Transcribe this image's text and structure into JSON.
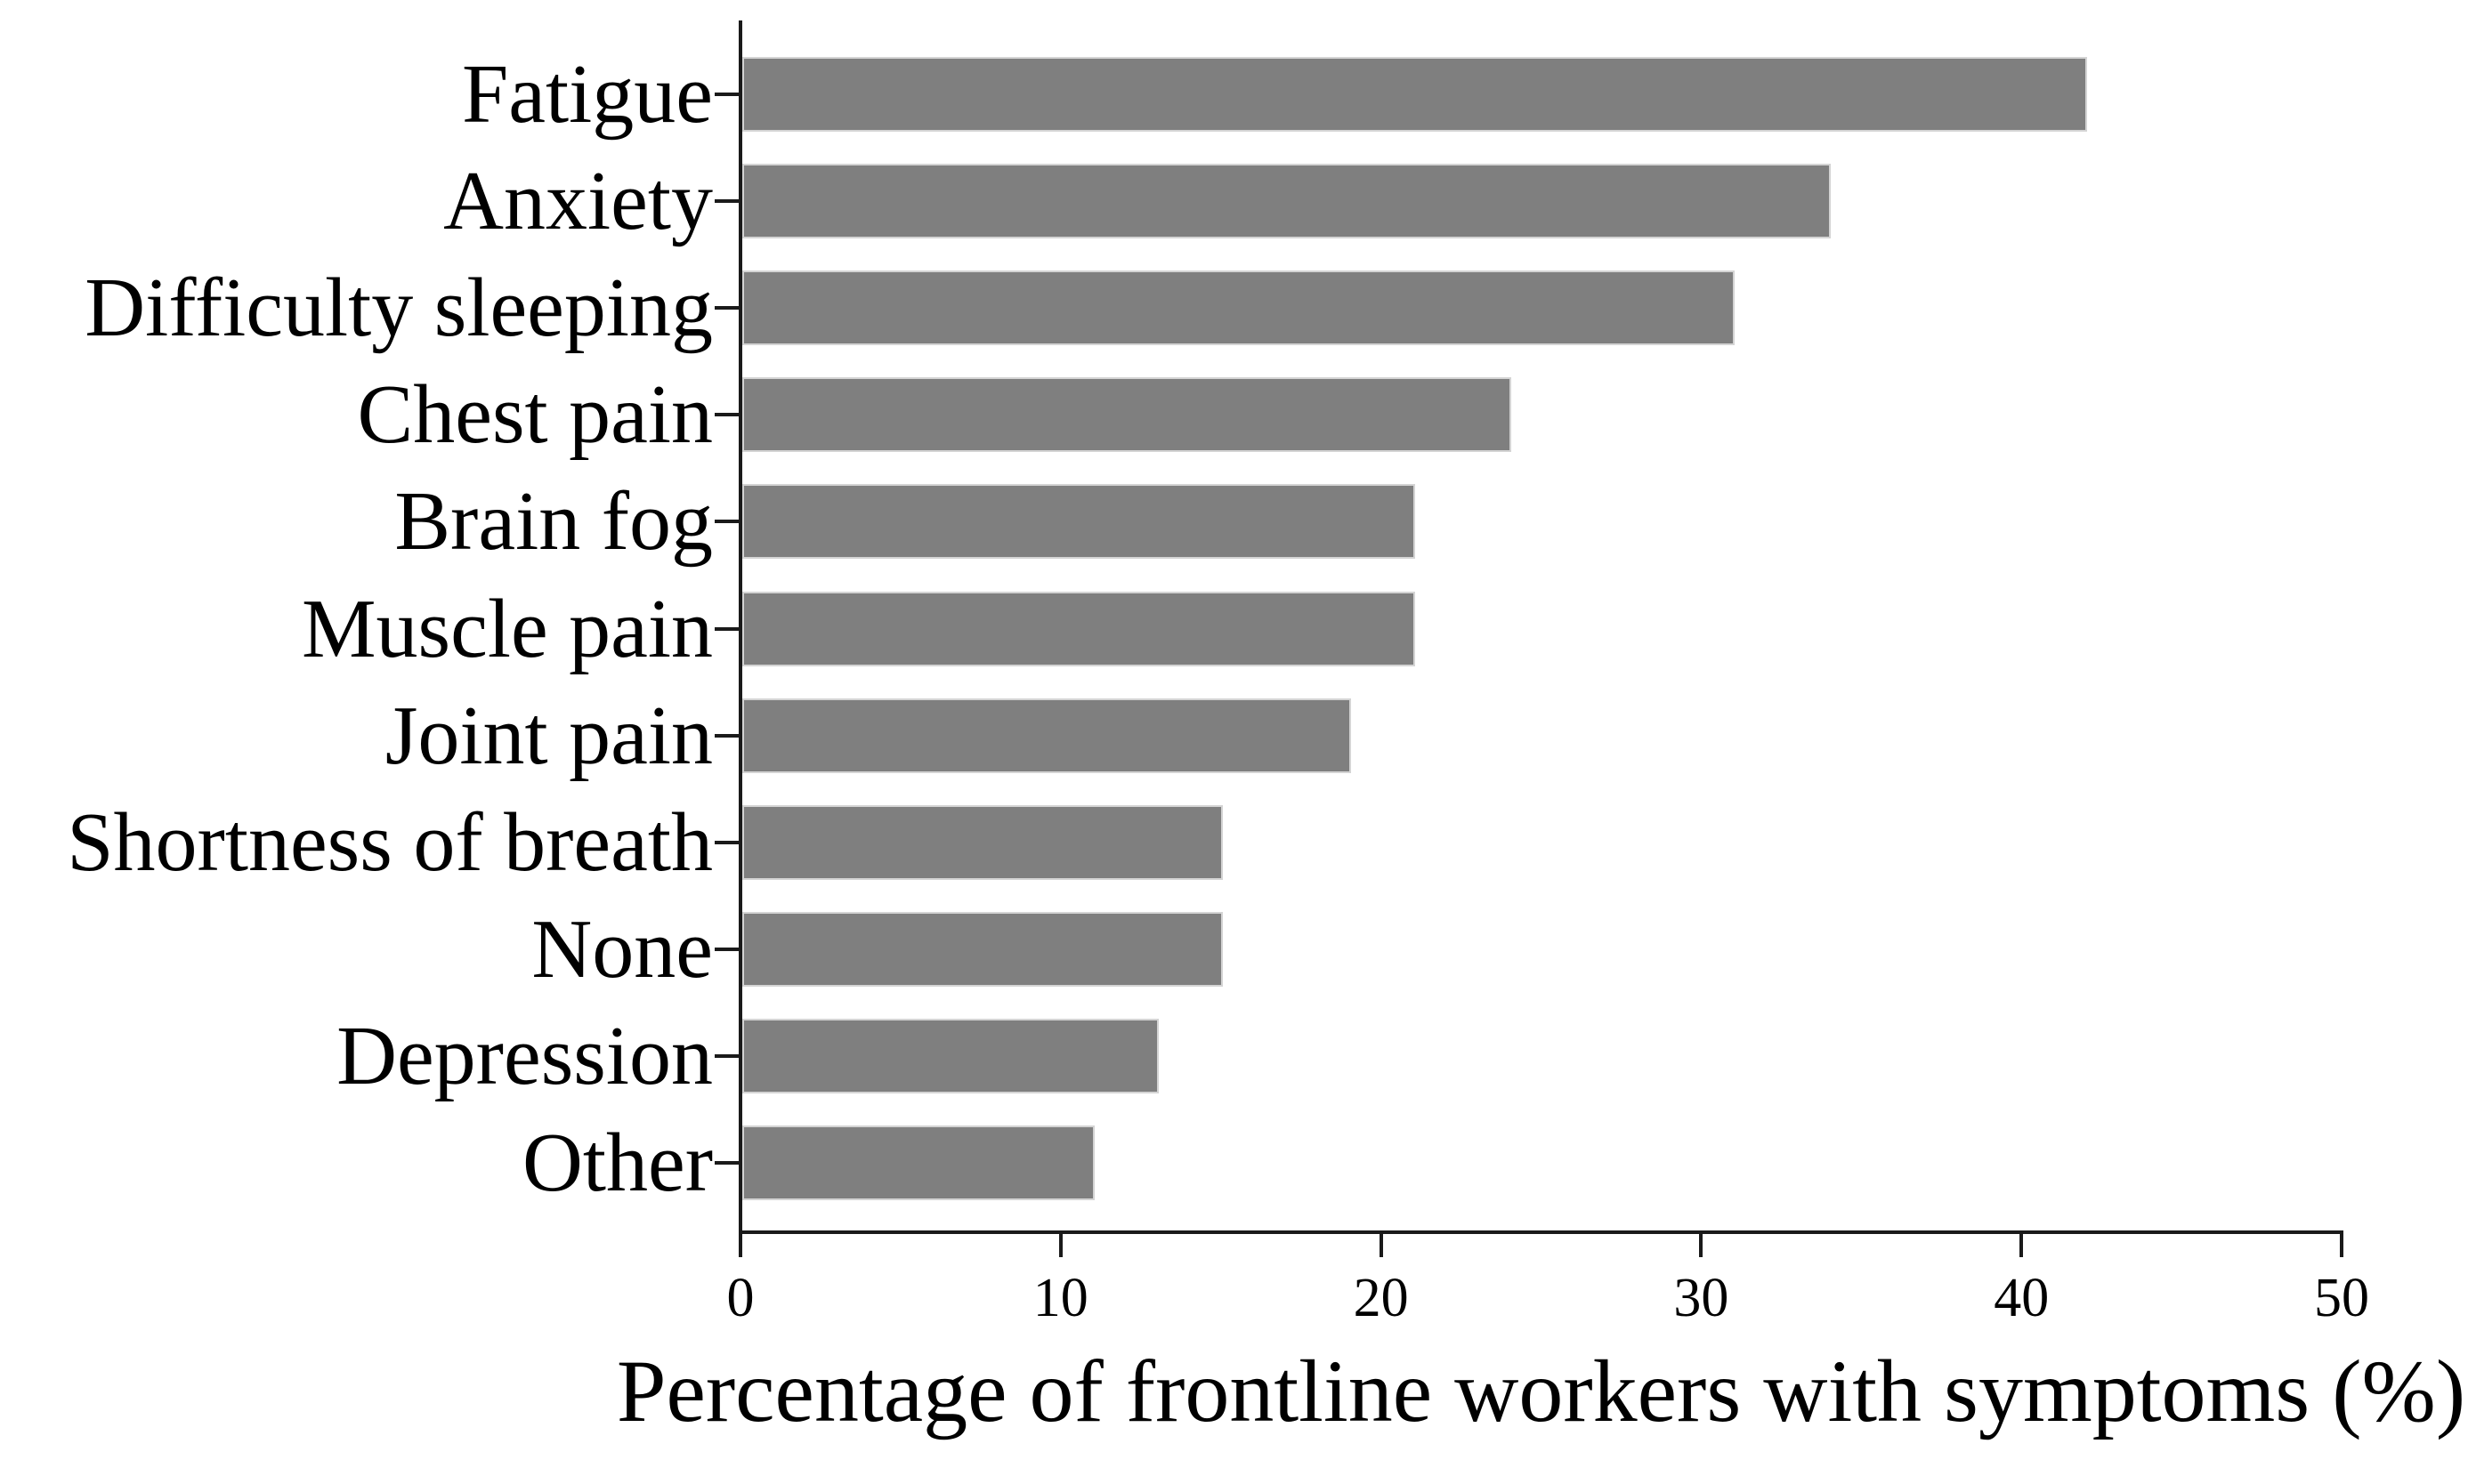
{
  "figure": {
    "background": "#ffffff"
  },
  "chart_data": {
    "type": "bar",
    "orientation": "horizontal",
    "title": "",
    "xlabel": "Percentage of frontline workers with symptoms (%)",
    "ylabel": "",
    "categories": [
      "Fatigue",
      "Anxiety",
      "Difficulty sleeping",
      "Chest pain",
      "Brain fog",
      "Muscle pain",
      "Joint pain",
      "Shortness of breath",
      "None",
      "Depression",
      "Other"
    ],
    "values": [
      42,
      34,
      31,
      24,
      21,
      21,
      19,
      15,
      15,
      13,
      11
    ],
    "xlim": [
      0,
      50
    ],
    "xticks": [
      0,
      10,
      20,
      30,
      40,
      50
    ],
    "grid": false,
    "legend": null,
    "bar_color": "#7f7f7f",
    "bar_edge_color": "#d4d4d4",
    "axis_color": "#1a1a1a",
    "text_color": "#000000"
  }
}
